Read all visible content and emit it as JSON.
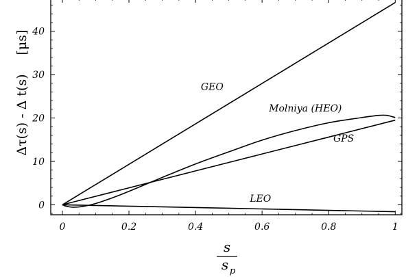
{
  "chart_data": {
    "type": "line",
    "title": "",
    "xlabel": {
      "numerator": "s",
      "denominator": "s",
      "denominator_subscript": "p"
    },
    "ylabel": "Δτ(s) - Δ t(s)",
    "yunit": "[μs]",
    "xlim": [
      -0.035,
      1.02
    ],
    "ylim": [
      -2.3,
      47.5
    ],
    "xticks": [
      0,
      0.2,
      0.4,
      0.6,
      0.8,
      1
    ],
    "xtick_labels": [
      "0",
      "0.2",
      "0.4",
      "0.6",
      "0.8",
      "1"
    ],
    "yticks": [
      0,
      10,
      20,
      30,
      40
    ],
    "ytick_labels": [
      "0",
      "10",
      "20",
      "30",
      "40"
    ],
    "grid": false,
    "legend": "none",
    "series": [
      {
        "name": "GEO",
        "x": [
          0,
          1
        ],
        "y": [
          0,
          46.6
        ]
      },
      {
        "name": "GPS",
        "x": [
          0,
          0.2,
          0.4,
          0.6,
          0.8,
          1
        ],
        "y": [
          0,
          3.9,
          7.8,
          11.7,
          15.6,
          19.5
        ]
      },
      {
        "name": "Molniya (HEO)",
        "x": [
          0,
          0.01,
          0.03,
          0.06,
          0.1,
          0.15,
          0.2,
          0.3,
          0.4,
          0.5,
          0.6,
          0.7,
          0.8,
          0.9,
          0.95,
          0.975,
          1.0
        ],
        "y": [
          0,
          -0.3,
          -0.55,
          -0.4,
          0.3,
          1.6,
          3.1,
          6.3,
          9.4,
          12.2,
          14.9,
          17.1,
          18.9,
          20.1,
          20.6,
          20.6,
          20.1
        ]
      },
      {
        "name": "LEO",
        "x": [
          0,
          1
        ],
        "y": [
          0,
          -1.6
        ]
      }
    ],
    "labels": [
      {
        "text": "GEO",
        "x": 0.45,
        "y": 26.5
      },
      {
        "text": "Molniya (HEO)",
        "x": 0.73,
        "y": 21.5
      },
      {
        "text": "GPS",
        "x": 0.845,
        "y": 14.6
      },
      {
        "text": "LEO",
        "x": 0.595,
        "y": 0.7
      }
    ]
  }
}
